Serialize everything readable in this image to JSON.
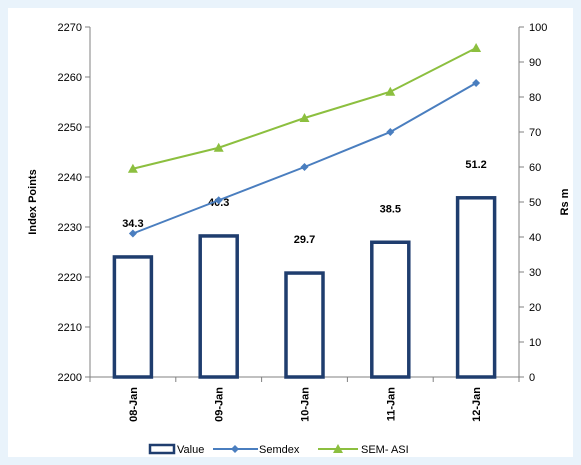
{
  "chart_data": {
    "type": "bar",
    "title": "",
    "categories": [
      "08-Jan",
      "09-Jan",
      "10-Jan",
      "11-Jan",
      "12-Jan"
    ],
    "ylabel": "Index Points",
    "y2label": "Rs m",
    "ylim": [
      2200,
      2270
    ],
    "y2lim": [
      0,
      100
    ],
    "y_ticks": [
      "2200",
      "2210",
      "2220",
      "2230",
      "2240",
      "2250",
      "2260",
      "2270"
    ],
    "y2_ticks": [
      "0",
      "10",
      "20",
      "30",
      "40",
      "50",
      "60",
      "70",
      "80",
      "90",
      "100"
    ],
    "series": [
      {
        "name": "Value",
        "type": "bar",
        "axis": "right",
        "values": [
          34.3,
          40.3,
          29.7,
          38.5,
          51.2
        ],
        "labels": [
          "34.3",
          "40.3",
          "29.7",
          "38.5",
          "51.2"
        ],
        "color": "#1f3d6e"
      },
      {
        "name": "Semdex",
        "type": "line",
        "axis": "right",
        "marker": "diamond",
        "values": [
          41,
          50.5,
          60,
          70,
          84
        ],
        "color": "#4a7ebf"
      },
      {
        "name": "SEM- ASI",
        "type": "line",
        "axis": "right",
        "marker": "triangle",
        "values": [
          59.5,
          65.5,
          74,
          81.5,
          94
        ],
        "color": "#8cbf3f"
      }
    ],
    "grid": false,
    "legend": "bottom"
  }
}
